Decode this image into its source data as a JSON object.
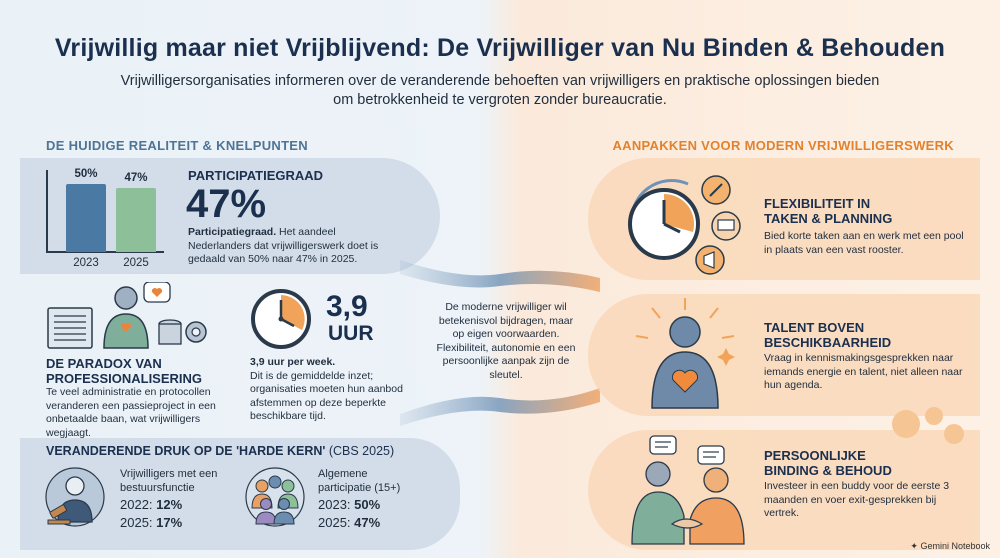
{
  "header": {
    "title": "Vrijwillig maar niet Vrijblijvend: De Vrijwilliger van Nu Binden & Behouden",
    "subtitle": "Vrijwilligersorganisaties informeren over de veranderende behoeften van vrijwilligers en praktische oplossingen bieden om betrokkenheid te vergroten zonder bureaucratie."
  },
  "left": {
    "heading": "DE HUIDIGE REALITEIT & KNELPUNTEN",
    "participation": {
      "label": "PARTICIPATIEGRAAD",
      "value": "47%",
      "desc_bold": "Participatiegraad.",
      "desc": "Het aandeel Nederlanders dat vrijwilligerswerk doet is gedaald van 50% naar 47% in 2025."
    },
    "paradox": {
      "title_line1": "DE PARADOX VAN",
      "title_line2": "PROFESSIONALISERING",
      "desc": "Te veel administratie en protocollen veranderen een passieproject in een onbetaalde baan, wat vrijwilligers wegjaagt."
    },
    "hours": {
      "value": "3,9",
      "unit": "UUR",
      "desc_bold": "3,9 uur per week.",
      "desc": "Dit is de gemiddelde inzet; organisaties moeten hun aanbod afstemmen op deze beperkte beschikbare tijd."
    },
    "pressure": {
      "heading_bold": "VERANDERENDE DRUK OP DE 'HARDE KERN'",
      "heading_rest": " (CBS 2025)",
      "board": {
        "label_line1": "Vrijwilligers met een",
        "label_line2": "bestuursfunctie",
        "row1_year": "2022:",
        "row1_value": "12%",
        "row2_year": "2025:",
        "row2_value": "17%"
      },
      "general": {
        "label_line1": "Algemene",
        "label_line2": "participatie (15+)",
        "row1_year": "2023:",
        "row1_value": "50%",
        "row2_year": "2025:",
        "row2_value": "47%"
      }
    }
  },
  "center": {
    "text": "De moderne vrijwilliger wil betekenisvol bijdragen, maar op eigen voorwaarden. Flexibiliteit, autonomie en een persoonlijke aanpak zijn de sleutel."
  },
  "right": {
    "heading": "AANPAKKEN VOOR MODERN VRIJWILLIGERSWERK",
    "items": [
      {
        "title_line1": "FLEXIBILITEIT IN",
        "title_line2": "TAKEN & PLANNING",
        "desc": "Bied korte taken aan en werk met een pool in plaats van een vast rooster."
      },
      {
        "title_line1": "TALENT BOVEN",
        "title_line2": "BESCHIKBAARHEID",
        "desc": "Vraag in kennismakingsgesprekken naar iemands energie en talent, niet alleen naar hun agenda."
      },
      {
        "title_line1": "PERSOONLIJKE",
        "title_line2": "BINDING & BEHOUD",
        "desc": "Investeer in een buddy voor de eerste 3 maanden en voer exit-gesprekken bij vertrek."
      }
    ]
  },
  "footer": {
    "brand": "Gemini Notebook"
  },
  "chart_data": {
    "type": "bar",
    "categories": [
      "2023",
      "2025"
    ],
    "values": [
      50,
      47
    ],
    "value_labels": [
      "50%",
      "47%"
    ],
    "colors": [
      "#4a7aa3",
      "#8dbf98"
    ],
    "ylim": [
      0,
      60
    ]
  }
}
